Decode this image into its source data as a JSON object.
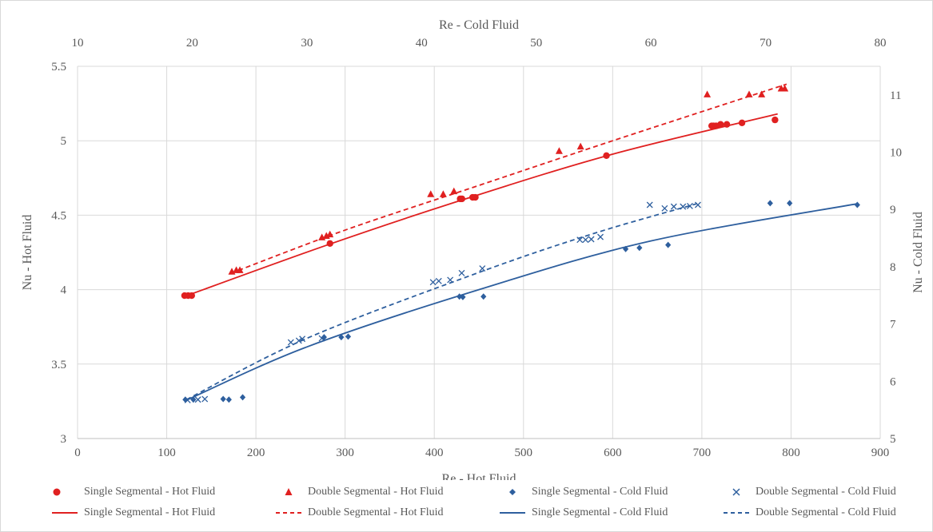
{
  "chart_data": {
    "type": "scatter",
    "x_bottom": {
      "label": "Re - Hot Fluid",
      "min": 0,
      "max": 900,
      "ticks": [
        "0",
        "100",
        "200",
        "300",
        "400",
        "500",
        "600",
        "700",
        "800",
        "900"
      ]
    },
    "x_top": {
      "label": "Re - Cold Fluid",
      "min": 10,
      "max": 80,
      "ticks": [
        "10",
        "20",
        "30",
        "40",
        "50",
        "60",
        "70",
        "80"
      ]
    },
    "y_left": {
      "label": "Nu - Hot Fluid",
      "min": 3,
      "max": 5.5,
      "ticks": [
        "3",
        "3.5",
        "4",
        "4.5",
        "5",
        "5.5"
      ]
    },
    "y_right": {
      "label": "Nu - Cold Fluid",
      "min": 5,
      "max": 11.5,
      "ticks": [
        "5",
        "6",
        "7",
        "8",
        "9",
        "10",
        "11"
      ]
    },
    "grid": true,
    "legend_position": "bottom",
    "series": [
      {
        "name": "Single Segmental - Hot Fluid",
        "axis": "hot",
        "marker": "circle",
        "color": "#e02020",
        "points": [
          [
            120,
            3.96
          ],
          [
            124,
            3.96
          ],
          [
            128,
            3.96
          ],
          [
            283,
            4.31
          ],
          [
            429,
            4.61
          ],
          [
            431,
            4.61
          ],
          [
            443,
            4.62
          ],
          [
            446,
            4.62
          ],
          [
            593,
            4.9
          ],
          [
            711,
            5.1
          ],
          [
            713,
            5.1
          ],
          [
            716,
            5.1
          ],
          [
            721,
            5.11
          ],
          [
            728,
            5.11
          ],
          [
            745,
            5.12
          ],
          [
            782,
            5.14
          ]
        ]
      },
      {
        "name": "Double Segmental - Hot Fluid",
        "axis": "hot",
        "marker": "triangle",
        "color": "#e02020",
        "points": [
          [
            173,
            4.12
          ],
          [
            178,
            4.13
          ],
          [
            182,
            4.13
          ],
          [
            274,
            4.35
          ],
          [
            279,
            4.36
          ],
          [
            283,
            4.37
          ],
          [
            396,
            4.64
          ],
          [
            410,
            4.64
          ],
          [
            422,
            4.66
          ],
          [
            540,
            4.93
          ],
          [
            564,
            4.96
          ],
          [
            706,
            5.31
          ],
          [
            753,
            5.31
          ],
          [
            767,
            5.31
          ],
          [
            789,
            5.35
          ],
          [
            793,
            5.35
          ]
        ]
      },
      {
        "name": "Single Segmental - Cold Fluid",
        "axis": "cold",
        "marker": "diamond",
        "color": "#2e5f9e",
        "points": [
          [
            19.4,
            5.68
          ],
          [
            20.1,
            5.68
          ],
          [
            22.7,
            5.69
          ],
          [
            23.2,
            5.68
          ],
          [
            24.4,
            5.72
          ],
          [
            31.5,
            6.77
          ],
          [
            33.0,
            6.77
          ],
          [
            33.6,
            6.78
          ],
          [
            43.3,
            7.48
          ],
          [
            43.6,
            7.47
          ],
          [
            45.4,
            7.48
          ],
          [
            57.8,
            8.31
          ],
          [
            59.0,
            8.33
          ],
          [
            61.5,
            8.38
          ],
          [
            70.4,
            9.11
          ],
          [
            72.1,
            9.11
          ],
          [
            78.0,
            9.08
          ]
        ]
      },
      {
        "name": "Double Segmental - Cold Fluid",
        "axis": "cold",
        "marker": "x",
        "color": "#2e5f9e",
        "points": [
          [
            19.6,
            5.67
          ],
          [
            20.5,
            5.68
          ],
          [
            21.1,
            5.69
          ],
          [
            28.6,
            6.68
          ],
          [
            29.3,
            6.71
          ],
          [
            29.6,
            6.74
          ],
          [
            31.3,
            6.75
          ],
          [
            41.0,
            7.73
          ],
          [
            41.5,
            7.75
          ],
          [
            42.5,
            7.77
          ],
          [
            43.5,
            7.89
          ],
          [
            45.3,
            7.97
          ],
          [
            53.8,
            8.47
          ],
          [
            54.3,
            8.47
          ],
          [
            54.8,
            8.48
          ],
          [
            55.6,
            8.52
          ],
          [
            59.9,
            9.08
          ],
          [
            61.2,
            9.02
          ],
          [
            62.0,
            9.05
          ],
          [
            62.8,
            9.05
          ],
          [
            63.4,
            9.06
          ],
          [
            64.1,
            9.08
          ]
        ]
      }
    ],
    "trendlines": [
      {
        "name": "Single Segmental - Hot Fluid",
        "axis": "hot",
        "style": "solid",
        "color": "#e02020",
        "points": [
          [
            118,
            3.95
          ],
          [
            280,
            4.3
          ],
          [
            430,
            4.6
          ],
          [
            600,
            4.91
          ],
          [
            785,
            5.18
          ]
        ]
      },
      {
        "name": "Double Segmental - Hot Fluid",
        "axis": "hot",
        "style": "dashed",
        "color": "#e02020",
        "points": [
          [
            172,
            4.11
          ],
          [
            300,
            4.4
          ],
          [
            450,
            4.7
          ],
          [
            600,
            5.0
          ],
          [
            795,
            5.38
          ]
        ]
      },
      {
        "name": "Single Segmental - Cold Fluid",
        "axis": "cold",
        "style": "solid",
        "color": "#2e5f9e",
        "points": [
          [
            19.4,
            5.66
          ],
          [
            30.0,
            6.6
          ],
          [
            45.0,
            7.6
          ],
          [
            60.0,
            8.45
          ],
          [
            78.0,
            9.1
          ]
        ]
      },
      {
        "name": "Double Segmental - Cold Fluid",
        "axis": "cold",
        "style": "dashed",
        "color": "#2e5f9e",
        "points": [
          [
            19.5,
            5.68
          ],
          [
            30.0,
            6.75
          ],
          [
            45.0,
            7.9
          ],
          [
            55.0,
            8.58
          ],
          [
            64.0,
            9.1
          ]
        ]
      }
    ]
  },
  "legend": {
    "markers": [
      {
        "label": "Single Segmental - Hot Fluid",
        "symbol": "circle",
        "color": "#e02020"
      },
      {
        "label": "Double Segmental - Hot Fluid",
        "symbol": "triangle",
        "color": "#e02020"
      },
      {
        "label": "Single Segmental - Cold Fluid",
        "symbol": "diamond",
        "color": "#2e5f9e"
      },
      {
        "label": "Double Segmental - Cold Fluid",
        "symbol": "x",
        "color": "#2e5f9e"
      }
    ],
    "lines": [
      {
        "label": "Single Segmental - Hot Fluid",
        "style": "solid",
        "color": "#e02020"
      },
      {
        "label": "Double Segmental - Hot Fluid",
        "style": "dashed",
        "color": "#e02020"
      },
      {
        "label": "Single Segmental - Cold Fluid",
        "style": "solid",
        "color": "#2e5f9e"
      },
      {
        "label": "Double Segmental - Cold Fluid",
        "style": "dashed",
        "color": "#2e5f9e"
      }
    ]
  }
}
